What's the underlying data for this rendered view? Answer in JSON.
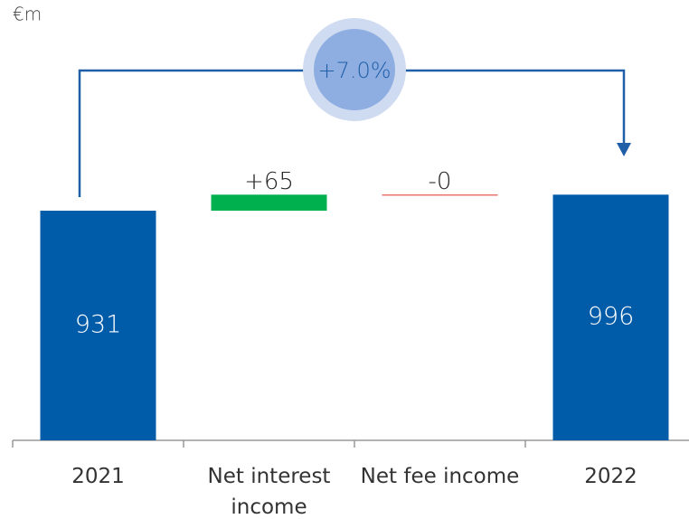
{
  "chart_data": {
    "type": "waterfall",
    "unit": "€m",
    "annotation": "+7.0%",
    "categories": [
      "2021",
      "Net interest income",
      "Net fee income",
      "2022"
    ],
    "values": [
      931,
      65,
      0,
      996
    ],
    "value_labels": [
      "931",
      "+65",
      "-0",
      "996"
    ],
    "color_total": "#005ca9",
    "color_increase": "#00b04f",
    "color_decrease": "#e0312b",
    "ylim": [
      0,
      1000
    ]
  }
}
